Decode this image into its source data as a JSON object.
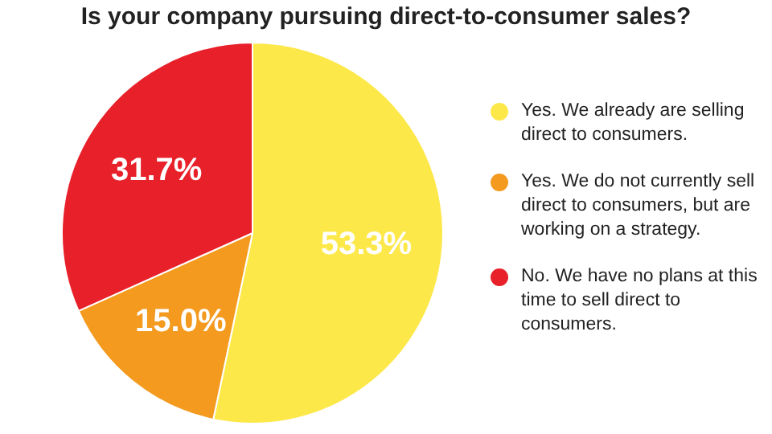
{
  "chart_data": {
    "type": "pie",
    "title": "Is your company pursuing direct-to-consumer sales?",
    "categories": [
      "Yes. We already are selling direct to consumers.",
      "Yes. We do not currently sell direct to consumers, but are working on a strategy.",
      "No. We have no plans at this time to sell direct to consumers."
    ],
    "values": [
      53.3,
      15.0,
      31.7
    ],
    "colors": [
      "#fde84a",
      "#f39a1f",
      "#e8202a"
    ],
    "value_labels": [
      "53.3%",
      "15.0%",
      "31.7%"
    ],
    "legend": "right"
  }
}
